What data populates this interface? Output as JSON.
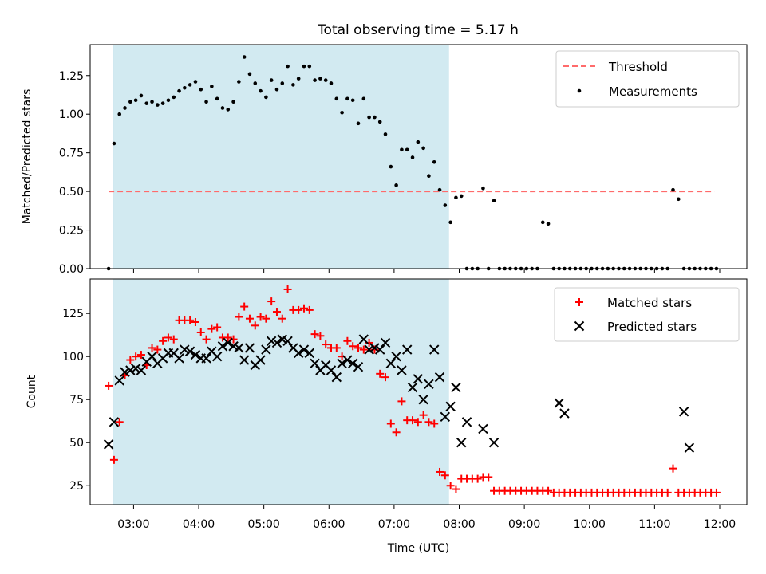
{
  "figure": {
    "title": "Total observing time = 5.17 h",
    "xlabel": "Time (UTC)"
  },
  "colors": {
    "span": "#add8e6",
    "threshold": "#ff6b6b",
    "matched": "#ff0000",
    "predicted": "#000000",
    "measure": "#000000"
  },
  "chart_data": [
    {
      "type": "scatter",
      "ylabel": "Matched/Predicted stars",
      "xlim": [
        "02:20",
        "12:25"
      ],
      "ylim": [
        0,
        1.45
      ],
      "yticks": [
        0.0,
        0.25,
        0.5,
        0.75,
        1.0,
        1.25
      ],
      "ytick_labels": [
        "0.00",
        "0.25",
        "0.50",
        "0.75",
        "1.00",
        "1.25"
      ],
      "shaded_span": [
        "02:41",
        "07:50"
      ],
      "legend_position": "upper right",
      "legend": [
        "Threshold",
        "Measurements"
      ],
      "threshold": {
        "name": "Threshold",
        "value": 0.5,
        "x": [
          "02:37",
          "11:55"
        ]
      },
      "series": [
        {
          "name": "Measurements",
          "x": [
            "02:37",
            "02:42",
            "02:47",
            "02:52",
            "02:57",
            "03:02",
            "03:07",
            "03:12",
            "03:17",
            "03:22",
            "03:27",
            "03:32",
            "03:37",
            "03:42",
            "03:47",
            "03:52",
            "03:57",
            "04:02",
            "04:07",
            "04:12",
            "04:17",
            "04:22",
            "04:27",
            "04:32",
            "04:37",
            "04:42",
            "04:47",
            "04:52",
            "04:57",
            "05:02",
            "05:07",
            "05:12",
            "05:17",
            "05:22",
            "05:27",
            "05:32",
            "05:37",
            "05:42",
            "05:47",
            "05:52",
            "05:57",
            "06:02",
            "06:07",
            "06:12",
            "06:17",
            "06:22",
            "06:27",
            "06:32",
            "06:37",
            "06:42",
            "06:47",
            "06:52",
            "06:57",
            "07:02",
            "07:07",
            "07:12",
            "07:17",
            "07:22",
            "07:27",
            "07:32",
            "07:37",
            "07:42",
            "07:47",
            "07:52",
            "07:57",
            "08:02",
            "08:07",
            "08:12",
            "08:17",
            "08:22",
            "08:27",
            "08:32",
            "08:37",
            "08:42",
            "08:47",
            "08:52",
            "08:57",
            "09:02",
            "09:07",
            "09:12",
            "09:17",
            "09:22",
            "09:27",
            "09:32",
            "09:37",
            "09:42",
            "09:47",
            "09:52",
            "09:57",
            "10:02",
            "10:07",
            "10:12",
            "10:17",
            "10:22",
            "10:27",
            "10:32",
            "10:37",
            "10:42",
            "10:47",
            "10:52",
            "10:57",
            "11:02",
            "11:07",
            "11:12",
            "11:17",
            "11:22",
            "11:27",
            "11:32",
            "11:37",
            "11:42",
            "11:47",
            "11:52",
            "11:57"
          ],
          "y": [
            0.0,
            0.81,
            1.0,
            1.04,
            1.08,
            1.09,
            1.12,
            1.07,
            1.08,
            1.06,
            1.07,
            1.09,
            1.11,
            1.15,
            1.17,
            1.19,
            1.21,
            1.16,
            1.08,
            1.18,
            1.1,
            1.04,
            1.03,
            1.08,
            1.21,
            1.37,
            1.26,
            1.2,
            1.15,
            1.11,
            1.22,
            1.16,
            1.2,
            1.31,
            1.19,
            1.23,
            1.31,
            1.31,
            1.22,
            1.23,
            1.22,
            1.2,
            1.1,
            1.01,
            1.1,
            1.09,
            0.94,
            1.1,
            0.98,
            0.98,
            0.95,
            0.87,
            0.66,
            0.54,
            0.77,
            0.77,
            0.72,
            0.82,
            0.78,
            0.6,
            0.69,
            0.51,
            0.41,
            0.3,
            0.46,
            0.47,
            0.0,
            0.0,
            0.0,
            0.52,
            0.0,
            0.44,
            0.0,
            0.0,
            0.0,
            0.0,
            0.0,
            0.0,
            0.0,
            0.0,
            0.3,
            0.29,
            0.0,
            0.0,
            0.0,
            0.0,
            0.0,
            0.0,
            0.0,
            0.0,
            0.0,
            0.0,
            0.0,
            0.0,
            0.0,
            0.0,
            0.0,
            0.0,
            0.0,
            0.0,
            0.0,
            0.0,
            0.0,
            0.0,
            0.51,
            0.45,
            0.0,
            0.0,
            0.0,
            0.0,
            0.0,
            0.0,
            0.0
          ]
        }
      ]
    },
    {
      "type": "scatter",
      "ylabel": "Count",
      "xlabel": "Time (UTC)",
      "xlim": [
        "02:20",
        "12:25"
      ],
      "ylim": [
        14,
        145
      ],
      "yticks": [
        25,
        50,
        75,
        100,
        125
      ],
      "ytick_labels": [
        "25",
        "50",
        "75",
        "100",
        "125"
      ],
      "xticks": [
        "03:00",
        "04:00",
        "05:00",
        "06:00",
        "07:00",
        "08:00",
        "09:00",
        "10:00",
        "11:00",
        "12:00"
      ],
      "shaded_span": [
        "02:41",
        "07:50"
      ],
      "legend_position": "upper right",
      "legend": [
        "Matched stars",
        "Predicted stars"
      ],
      "series": [
        {
          "name": "Matched stars",
          "marker": "plus",
          "x": [
            "02:37",
            "02:42",
            "02:47",
            "02:52",
            "02:57",
            "03:02",
            "03:07",
            "03:12",
            "03:17",
            "03:22",
            "03:27",
            "03:32",
            "03:37",
            "03:42",
            "03:47",
            "03:52",
            "03:57",
            "04:02",
            "04:07",
            "04:12",
            "04:17",
            "04:22",
            "04:27",
            "04:32",
            "04:37",
            "04:42",
            "04:47",
            "04:52",
            "04:57",
            "05:02",
            "05:07",
            "05:12",
            "05:17",
            "05:22",
            "05:27",
            "05:32",
            "05:37",
            "05:42",
            "05:47",
            "05:52",
            "05:57",
            "06:02",
            "06:07",
            "06:12",
            "06:17",
            "06:22",
            "06:27",
            "06:32",
            "06:37",
            "06:42",
            "06:47",
            "06:52",
            "06:57",
            "07:02",
            "07:07",
            "07:12",
            "07:17",
            "07:22",
            "07:27",
            "07:32",
            "07:37",
            "07:42",
            "07:47",
            "07:52",
            "07:57",
            "08:02",
            "08:07",
            "08:12",
            "08:17",
            "08:22",
            "08:27",
            "08:32",
            "08:37",
            "08:42",
            "08:47",
            "08:52",
            "08:57",
            "09:02",
            "09:07",
            "09:12",
            "09:17",
            "09:22",
            "09:27",
            "09:32",
            "09:37",
            "09:42",
            "09:47",
            "09:52",
            "09:57",
            "10:02",
            "10:07",
            "10:12",
            "10:17",
            "10:22",
            "10:27",
            "10:32",
            "10:37",
            "10:42",
            "10:47",
            "10:52",
            "10:57",
            "11:02",
            "11:07",
            "11:12",
            "11:17",
            "11:22",
            "11:27",
            "11:32",
            "11:37",
            "11:42",
            "11:47",
            "11:52",
            "11:57"
          ],
          "y": [
            83,
            40,
            62,
            89,
            98,
            100,
            101,
            95,
            105,
            104,
            109,
            111,
            110,
            121,
            121,
            121,
            120,
            114,
            110,
            116,
            117,
            111,
            111,
            110,
            123,
            129,
            122,
            118,
            123,
            122,
            132,
            126,
            122,
            139,
            127,
            127,
            128,
            127,
            113,
            112,
            107,
            105,
            105,
            100,
            109,
            106,
            105,
            104,
            108,
            104,
            90,
            88,
            61,
            56,
            74,
            63,
            63,
            62,
            66,
            62,
            61,
            33,
            31,
            25,
            23,
            29,
            29,
            29,
            29,
            30,
            30,
            22,
            22,
            22,
            22,
            22,
            22,
            22,
            22,
            22,
            22,
            22,
            21,
            21,
            21,
            21,
            21,
            21,
            21,
            21,
            21,
            21,
            21,
            21,
            21,
            21,
            21,
            21,
            21,
            21,
            21,
            21,
            21,
            21,
            35,
            21,
            21,
            21,
            21,
            21,
            21,
            21,
            21
          ]
        },
        {
          "name": "Predicted stars",
          "marker": "x",
          "x": [
            "02:37",
            "02:42",
            "02:47",
            "02:52",
            "02:57",
            "03:02",
            "03:07",
            "03:12",
            "03:17",
            "03:22",
            "03:27",
            "03:32",
            "03:37",
            "03:42",
            "03:47",
            "03:52",
            "03:57",
            "04:02",
            "04:07",
            "04:12",
            "04:17",
            "04:22",
            "04:27",
            "04:32",
            "04:37",
            "04:42",
            "04:47",
            "04:52",
            "04:57",
            "05:02",
            "05:07",
            "05:12",
            "05:17",
            "05:22",
            "05:27",
            "05:32",
            "05:37",
            "05:42",
            "05:47",
            "05:52",
            "05:57",
            "06:02",
            "06:07",
            "06:12",
            "06:17",
            "06:22",
            "06:27",
            "06:32",
            "06:37",
            "06:42",
            "06:47",
            "06:52",
            "06:57",
            "07:02",
            "07:07",
            "07:12",
            "07:17",
            "07:22",
            "07:27",
            "07:32",
            "07:37",
            "07:42",
            "07:47",
            "07:52",
            "07:57",
            "08:02",
            "08:07",
            "08:22",
            "08:32",
            "09:32",
            "09:37",
            "11:27",
            "11:32"
          ],
          "y": [
            49,
            62,
            86,
            91,
            92,
            93,
            92,
            97,
            100,
            96,
            99,
            102,
            102,
            99,
            104,
            103,
            101,
            99,
            99,
            103,
            100,
            106,
            108,
            106,
            105,
            98,
            105,
            95,
            98,
            104,
            109,
            108,
            110,
            109,
            105,
            102,
            104,
            102,
            96,
            92,
            95,
            92,
            88,
            96,
            98,
            96,
            94,
            110,
            104,
            105,
            104,
            108,
            96,
            100,
            92,
            104,
            82,
            87,
            75,
            84,
            104,
            88,
            65,
            71,
            82,
            50,
            62,
            58,
            50,
            73,
            67,
            68,
            47
          ]
        }
      ]
    }
  ]
}
